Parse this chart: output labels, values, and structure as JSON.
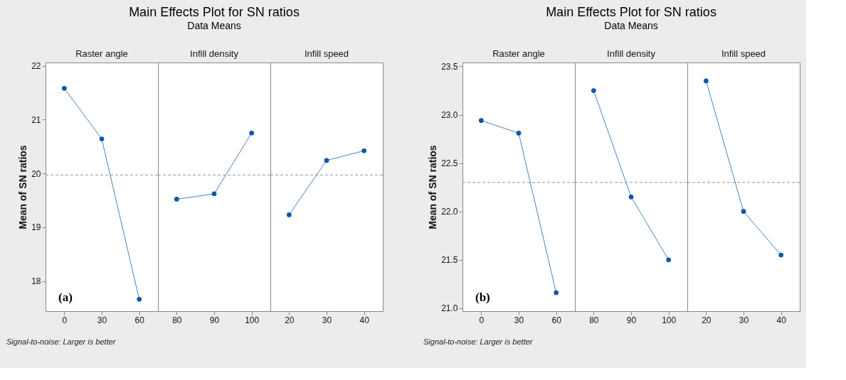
{
  "chart_data": [
    {
      "type": "line",
      "xlabel": "Raster angle",
      "ylabel": "Mean of SN ratios",
      "categories": [
        "0",
        "30",
        "60"
      ],
      "series": [
        {
          "color": "#0b58a8",
          "values": [
            21.58,
            20.64,
            17.66
          ]
        }
      ],
      "ylim": [
        17.44,
        22.06
      ],
      "yticks": [
        18,
        19,
        20,
        21,
        22
      ],
      "ref_lines": [
        {
          "axis": "y",
          "value": 19.97,
          "color": "#909090",
          "line_style": "dashed"
        }
      ],
      "marker": "circle",
      "annotations": [
        "(a)",
        "Signal-to-noise: Larger is better"
      ]
    },
    {
      "type": "line",
      "title": "Main Effects Plot for SN ratios",
      "subtitle": "Data Means",
      "xlabel": "Infill density",
      "categories": [
        "80",
        "90",
        "100"
      ],
      "series": [
        {
          "color": "#0b58a8",
          "values": [
            19.52,
            19.62,
            20.75
          ]
        }
      ],
      "ylim": [
        17.44,
        22.06
      ],
      "ref_lines": [
        {
          "axis": "y",
          "value": 19.97,
          "color": "#909090",
          "line_style": "dashed"
        }
      ],
      "marker": "circle",
      "tick_labels": "x"
    },
    {
      "type": "line",
      "xlabel": "Infill speed",
      "categories": [
        "20",
        "30",
        "40"
      ],
      "series": [
        {
          "color": "#0b58a8",
          "values": [
            19.23,
            20.24,
            20.42
          ]
        }
      ],
      "ylim": [
        17.44,
        22.06
      ],
      "ref_lines": [
        {
          "axis": "y",
          "value": 19.97,
          "color": "#909090",
          "line_style": "dashed"
        }
      ],
      "marker": "circle",
      "tick_labels": "x"
    },
    {
      "type": "line",
      "xlabel": "Raster angle",
      "ylabel": "Mean of SN ratios",
      "categories": [
        "0",
        "30",
        "60"
      ],
      "series": [
        {
          "color": "#0b58a8",
          "values": [
            22.94,
            22.81,
            21.16
          ]
        }
      ],
      "ylim": [
        20.97,
        23.54
      ],
      "yticks": [
        {
          "value": 21,
          "label": "21.0"
        },
        21.5,
        {
          "value": 22,
          "label": "22.0"
        },
        22.5,
        {
          "value": 23,
          "label": "23.0"
        },
        23.5
      ],
      "ref_lines": [
        {
          "axis": "y",
          "value": 22.3,
          "color": "#909090",
          "line_style": "dashed"
        }
      ],
      "marker": "circle",
      "annotations": [
        "(b)",
        "Signal-to-noise: Larger is better"
      ]
    },
    {
      "type": "line",
      "title": "Main Effects Plot for SN ratios",
      "subtitle": "Data Means",
      "xlabel": "Infill density",
      "categories": [
        "80",
        "90",
        "100"
      ],
      "series": [
        {
          "color": "#0b58a8",
          "values": [
            23.25,
            22.15,
            21.5
          ]
        }
      ],
      "ylim": [
        20.97,
        23.54
      ],
      "ref_lines": [
        {
          "axis": "y",
          "value": 22.3,
          "color": "#909090",
          "line_style": "dashed"
        }
      ],
      "marker": "circle",
      "tick_labels": "x"
    },
    {
      "type": "line",
      "xlabel": "Infill speed",
      "categories": [
        "20",
        "30",
        "40"
      ],
      "series": [
        {
          "color": "#0b58a8",
          "values": [
            23.35,
            22.0,
            21.55
          ]
        }
      ],
      "ylim": [
        20.97,
        23.54
      ],
      "ref_lines": [
        {
          "axis": "y",
          "value": 22.3,
          "color": "#909090",
          "line_style": "dashed"
        }
      ],
      "marker": "circle",
      "tick_labels": "x"
    }
  ]
}
